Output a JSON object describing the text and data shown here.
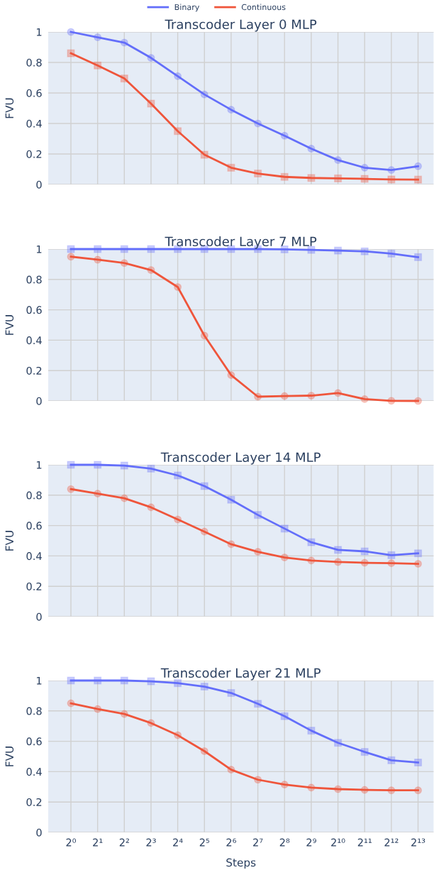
{
  "chart_data": [
    {
      "type": "line",
      "title": "Transcoder Layer 0 MLP",
      "ylabel": "FVU",
      "log": "x",
      "x": [
        1,
        2,
        4,
        8,
        16,
        32,
        64,
        128,
        256,
        512,
        1024,
        2048,
        4096,
        8192
      ],
      "xlim": [
        0.555,
        12250
      ],
      "xticks": [
        1,
        2,
        4,
        8,
        16,
        32,
        64,
        128,
        256,
        512,
        1024,
        2048,
        4096,
        8192
      ],
      "ylim": [
        0,
        1
      ],
      "yticks": [
        0,
        0.2,
        0.4,
        0.6,
        0.8,
        1
      ],
      "tick_labels": "y",
      "grid": true,
      "legend": "top",
      "series": [
        {
          "name": "Binary",
          "color": "#636efa",
          "marker": "circle",
          "values": [
            1.0,
            0.965,
            0.93,
            0.83,
            0.71,
            0.59,
            0.49,
            0.4,
            0.32,
            0.235,
            0.16,
            0.11,
            0.095,
            0.12
          ]
        },
        {
          "name": "Continuous",
          "color": "#ef553b",
          "marker": "square",
          "values": [
            0.86,
            0.78,
            0.695,
            0.53,
            0.35,
            0.195,
            0.11,
            0.072,
            0.05,
            0.043,
            0.04,
            0.037,
            0.033,
            0.032
          ]
        }
      ]
    },
    {
      "type": "line",
      "title": "Transcoder Layer 7 MLP",
      "ylabel": "FVU",
      "log": "x",
      "x": [
        1,
        2,
        4,
        8,
        16,
        32,
        64,
        128,
        256,
        512,
        1024,
        2048,
        4096,
        8192
      ],
      "xlim": [
        0.555,
        12250
      ],
      "xticks": [
        1,
        2,
        4,
        8,
        16,
        32,
        64,
        128,
        256,
        512,
        1024,
        2048,
        4096,
        8192
      ],
      "ylim": [
        0,
        1
      ],
      "yticks": [
        0,
        0.2,
        0.4,
        0.6,
        0.8,
        1
      ],
      "tick_labels": "y",
      "grid": true,
      "series": [
        {
          "color": "#636efa",
          "marker": "square",
          "values": [
            1.0,
            1.0,
            1.0,
            1.0,
            1.0,
            1.0,
            1.0,
            1.0,
            0.998,
            0.995,
            0.99,
            0.985,
            0.97,
            0.947
          ]
        },
        {
          "color": "#ef553b",
          "marker": "circle",
          "values": [
            0.95,
            0.93,
            0.908,
            0.862,
            0.75,
            0.43,
            0.17,
            0.028,
            0.032,
            0.035,
            0.052,
            0.012,
            0.001,
            0.0
          ]
        }
      ]
    },
    {
      "type": "line",
      "title": "Transcoder Layer 14 MLP",
      "ylabel": "FVU",
      "log": "x",
      "x": [
        1,
        2,
        4,
        8,
        16,
        32,
        64,
        128,
        256,
        512,
        1024,
        2048,
        4096,
        8192
      ],
      "xlim": [
        0.555,
        12250
      ],
      "xticks": [
        1,
        2,
        4,
        8,
        16,
        32,
        64,
        128,
        256,
        512,
        1024,
        2048,
        4096,
        8192
      ],
      "ylim": [
        0,
        1
      ],
      "yticks": [
        0,
        0.2,
        0.4,
        0.6,
        0.8,
        1
      ],
      "tick_labels": "y",
      "grid": true,
      "series": [
        {
          "color": "#636efa",
          "marker": "square",
          "values": [
            1.0,
            1.0,
            0.995,
            0.975,
            0.93,
            0.86,
            0.77,
            0.67,
            0.58,
            0.49,
            0.44,
            0.43,
            0.405,
            0.417
          ]
        },
        {
          "color": "#ef553b",
          "marker": "circle",
          "values": [
            0.84,
            0.81,
            0.78,
            0.72,
            0.64,
            0.56,
            0.477,
            0.427,
            0.39,
            0.37,
            0.36,
            0.355,
            0.352,
            0.348
          ]
        }
      ]
    },
    {
      "type": "line",
      "title": "Transcoder Layer 21 MLP",
      "xlabel": "Steps",
      "ylabel": "FVU",
      "log": "x",
      "x": [
        1,
        2,
        4,
        8,
        16,
        32,
        64,
        128,
        256,
        512,
        1024,
        2048,
        4096,
        8192
      ],
      "xlim": [
        0.555,
        12250
      ],
      "xticks": [
        {
          "value": 1,
          "label": "2⁰"
        },
        {
          "value": 2,
          "label": "2¹"
        },
        {
          "value": 4,
          "label": "2²"
        },
        {
          "value": 8,
          "label": "2³"
        },
        {
          "value": 16,
          "label": "2⁴"
        },
        {
          "value": 32,
          "label": "2⁵"
        },
        {
          "value": 64,
          "label": "2⁶"
        },
        {
          "value": 128,
          "label": "2⁷"
        },
        {
          "value": 256,
          "label": "2⁸"
        },
        {
          "value": 512,
          "label": "2⁹"
        },
        {
          "value": 1024,
          "label": "2¹⁰"
        },
        {
          "value": 2048,
          "label": "2¹¹"
        },
        {
          "value": 4096,
          "label": "2¹²"
        },
        {
          "value": 8192,
          "label": "2¹³"
        }
      ],
      "ylim": [
        0,
        1
      ],
      "yticks": [
        0,
        0.2,
        0.4,
        0.6,
        0.8,
        1
      ],
      "grid": true,
      "series": [
        {
          "color": "#636efa",
          "marker": "square",
          "values": [
            1.0,
            1.0,
            1.0,
            0.995,
            0.983,
            0.96,
            0.918,
            0.847,
            0.765,
            0.67,
            0.59,
            0.53,
            0.475,
            0.46
          ]
        },
        {
          "color": "#ef553b",
          "marker": "circle",
          "values": [
            0.85,
            0.812,
            0.78,
            0.72,
            0.64,
            0.535,
            0.413,
            0.347,
            0.315,
            0.295,
            0.285,
            0.28,
            0.277,
            0.277
          ]
        }
      ]
    }
  ]
}
